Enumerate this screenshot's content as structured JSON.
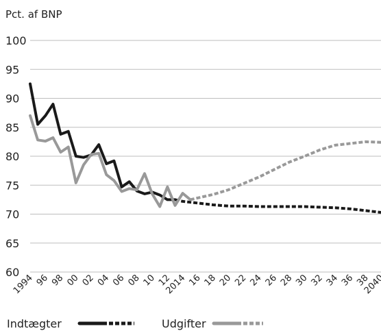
{
  "chart_data": {
    "type": "line",
    "unit_label": "Pct. af BNP",
    "ylim": [
      60,
      100
    ],
    "y_ticks": [
      "100",
      "95",
      "90",
      "85",
      "80",
      "75",
      "70",
      "65",
      "60"
    ],
    "x_ticks": [
      "1994",
      "96",
      "98",
      "00",
      "02",
      "04",
      "06",
      "08",
      "10",
      "12",
      "2014",
      "16",
      "18",
      "20",
      "22",
      "24",
      "26",
      "28",
      "30",
      "32",
      "34",
      "36",
      "38",
      "2040"
    ],
    "grid": true,
    "legend_position": "bottom-left",
    "series": [
      {
        "name": "Indtægter",
        "color": "#1a1a1a",
        "values_actual": {
          "x": [
            1994,
            1995,
            1996,
            1997,
            1998,
            1999,
            2000,
            2001,
            2002,
            2003,
            2004,
            2005,
            2006,
            2007,
            2008,
            2009,
            2010,
            2011,
            2012,
            2013
          ],
          "y": [
            92.5,
            85.5,
            87.0,
            89.0,
            83.8,
            84.3,
            80.0,
            79.8,
            80.2,
            82.0,
            78.7,
            79.2,
            74.7,
            75.6,
            74.0,
            73.5,
            73.8,
            73.3,
            72.5,
            72.5
          ]
        },
        "values_projection": {
          "x": [
            2013,
            2014,
            2016,
            2018,
            2020,
            2022,
            2024,
            2026,
            2028,
            2030,
            2032,
            2034,
            2036,
            2038,
            2040
          ],
          "y": [
            72.5,
            72.2,
            71.9,
            71.6,
            71.4,
            71.4,
            71.3,
            71.3,
            71.3,
            71.3,
            71.2,
            71.1,
            70.9,
            70.6,
            70.3
          ]
        }
      },
      {
        "name": "Udgifter",
        "color": "#999999",
        "values_actual": {
          "x": [
            1994,
            1995,
            1996,
            1997,
            1998,
            1999,
            2000,
            2001,
            2002,
            2003,
            2004,
            2005,
            2006,
            2007,
            2008,
            2009,
            2010,
            2011,
            2012,
            2013,
            2014,
            2015
          ],
          "y": [
            87.0,
            82.8,
            82.6,
            83.2,
            80.7,
            81.6,
            75.4,
            78.5,
            80.3,
            80.5,
            76.8,
            75.8,
            73.9,
            74.4,
            74.2,
            77.0,
            73.5,
            71.3,
            74.7,
            71.5,
            73.6,
            72.5
          ]
        },
        "values_projection": {
          "x": [
            2015,
            2016,
            2018,
            2020,
            2022,
            2024,
            2026,
            2028,
            2030,
            2032,
            2034,
            2036,
            2038,
            2040
          ],
          "y": [
            72.5,
            72.8,
            73.4,
            74.2,
            75.3,
            76.4,
            77.7,
            79.0,
            80.0,
            81.1,
            81.9,
            82.2,
            82.5,
            82.4
          ]
        }
      }
    ]
  }
}
